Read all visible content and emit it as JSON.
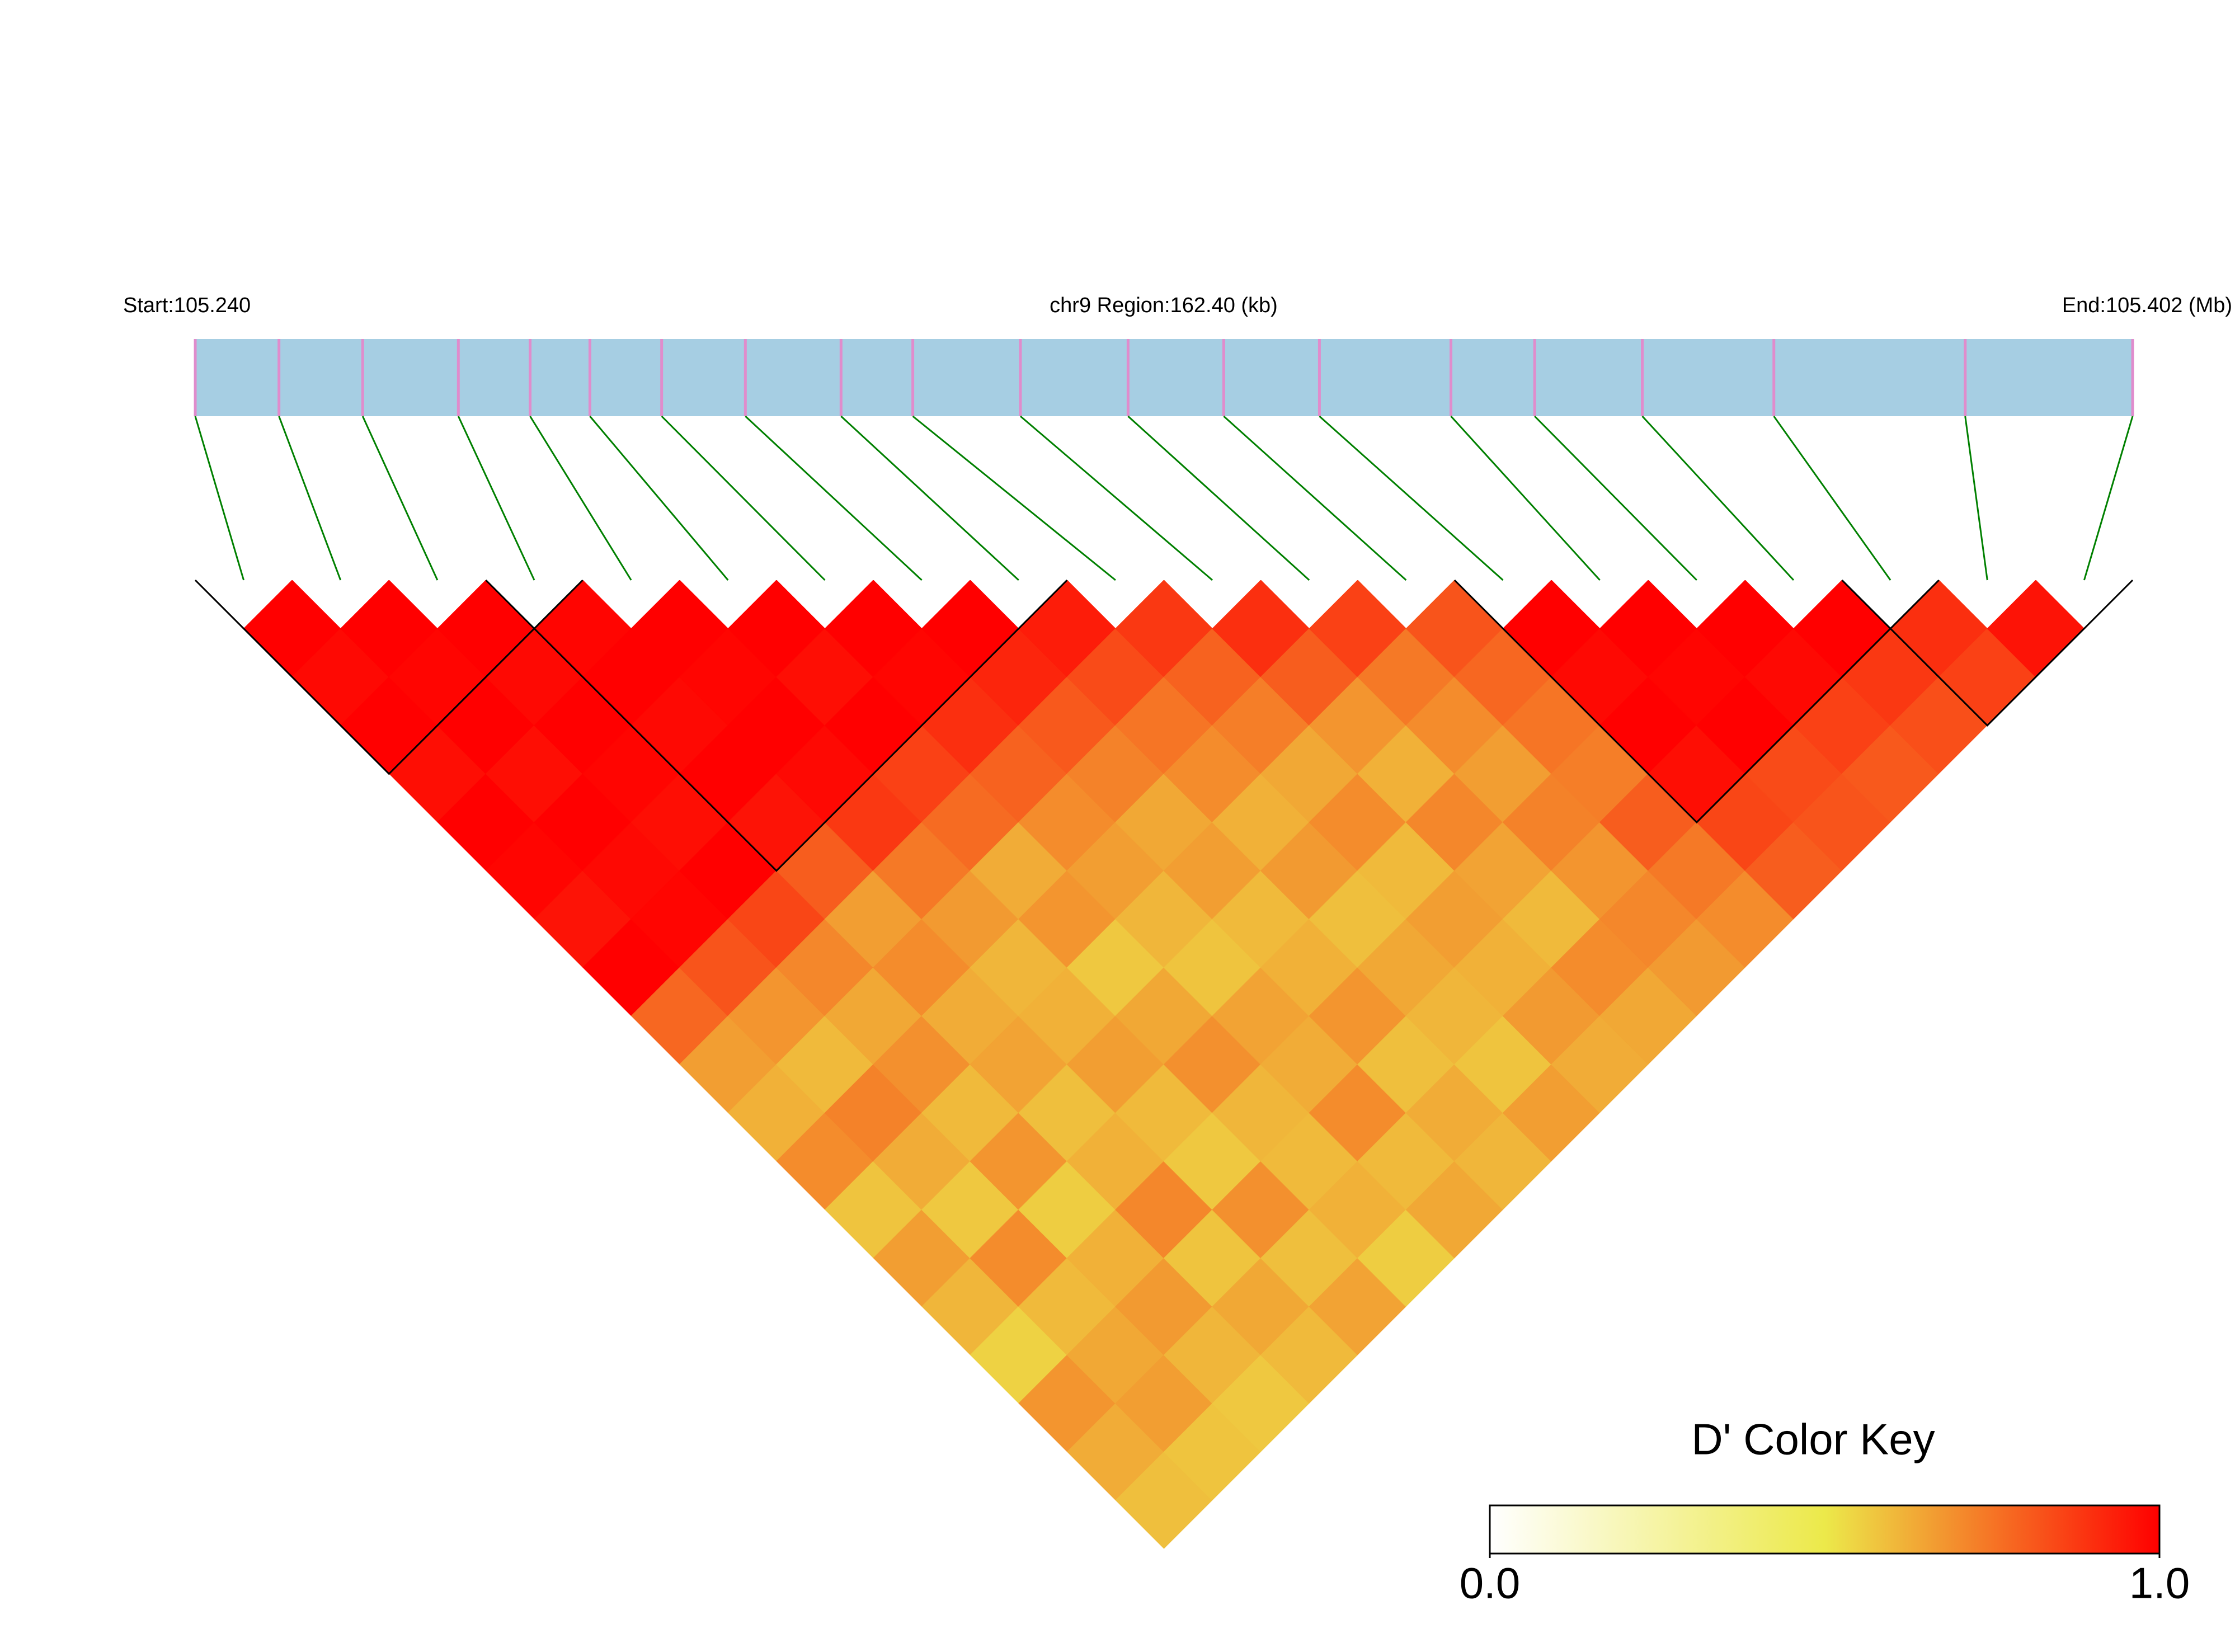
{
  "chart_data": {
    "type": "heatmap",
    "title": "chr9 Region:162.40 (kb)",
    "start_label": "Start:105.240",
    "end_label": "End:105.402 (Mb)",
    "xlim": [
      105.24,
      105.402
    ],
    "positions": [
      105.24,
      105.247,
      105.254,
      105.262,
      105.268,
      105.273,
      105.279,
      105.286,
      105.294,
      105.3,
      105.309,
      105.318,
      105.326,
      105.334,
      105.345,
      105.352,
      105.361,
      105.372,
      105.388,
      105.402
    ],
    "matrix": [
      [
        1,
        0.98,
        1,
        0.97,
        1,
        0.99,
        0.96,
        1,
        0.78,
        0.66,
        0.62,
        0.7,
        0.58,
        0.66,
        0.61,
        0.55,
        0.68,
        0.63,
        0.59
      ],
      [
        1,
        0.99,
        1,
        0.97,
        1,
        0.98,
        0.99,
        0.82,
        0.68,
        0.6,
        0.72,
        0.63,
        0.57,
        0.7,
        0.6,
        0.64,
        0.66,
        0.58
      ],
      [
        1,
        0.98,
        1,
        0.99,
        0.97,
        1,
        0.85,
        0.71,
        0.64,
        0.69,
        0.6,
        0.68,
        0.56,
        0.62,
        0.67,
        0.61,
        0.57
      ],
      [
        0.99,
        1,
        0.98,
        1,
        0.96,
        0.8,
        0.66,
        0.7,
        0.63,
        0.65,
        0.59,
        0.62,
        0.71,
        0.58,
        0.64,
        0.6
      ],
      [
        1,
        0.99,
        1,
        0.98,
        0.88,
        0.74,
        0.67,
        0.61,
        0.62,
        0.66,
        0.6,
        0.57,
        0.69,
        0.59,
        0.65
      ],
      [
        1,
        0.97,
        1,
        0.86,
        0.77,
        0.63,
        0.68,
        0.57,
        0.64,
        0.69,
        0.61,
        0.6,
        0.62,
        0.56
      ],
      [
        1,
        0.99,
        0.9,
        0.79,
        0.7,
        0.66,
        0.61,
        0.58,
        0.65,
        0.63,
        0.7,
        0.6,
        0.64
      ],
      [
        1,
        0.92,
        0.81,
        0.72,
        0.64,
        0.66,
        0.6,
        0.62,
        0.68,
        0.59,
        0.63,
        0.61
      ],
      [
        0.94,
        0.84,
        0.75,
        0.7,
        0.62,
        0.67,
        0.59,
        0.64,
        0.61,
        0.58,
        0.66
      ],
      [
        0.88,
        0.79,
        0.73,
        0.64,
        0.7,
        0.6,
        0.66,
        0.62,
        0.67,
        0.63
      ],
      [
        0.9,
        0.8,
        0.68,
        0.62,
        0.71,
        0.65,
        0.6,
        0.7,
        0.64
      ],
      [
        0.86,
        0.74,
        0.7,
        0.66,
        0.72,
        0.68,
        0.71,
        0.67
      ],
      [
        0.82,
        0.78,
        0.75,
        0.73,
        0.8,
        0.74,
        0.7
      ],
      [
        1,
        0.98,
        1,
        0.97,
        0.85,
        0.8
      ],
      [
        1,
        0.99,
        1,
        0.84,
        0.82
      ],
      [
        1,
        0.98,
        0.86,
        0.81
      ],
      [
        1,
        0.88,
        0.83
      ],
      [
        0.9,
        0.86
      ],
      [
        0.96
      ]
    ],
    "blocks": [
      [
        0,
        3
      ],
      [
        3,
        8
      ],
      [
        13,
        17
      ],
      [
        17,
        19
      ]
    ],
    "bar_color": "#a6cee3",
    "snp_color": "#e08ccc",
    "link_color": "#008000",
    "colorbar_title": "D' Color Key",
    "colors": [
      "#ffffff",
      "#ece94a",
      "#ff0000"
    ],
    "zlim": [
      0,
      1
    ],
    "zticks": [
      {
        "value": 0,
        "label": "0.0"
      },
      {
        "value": 1,
        "label": "1.0"
      }
    ]
  }
}
